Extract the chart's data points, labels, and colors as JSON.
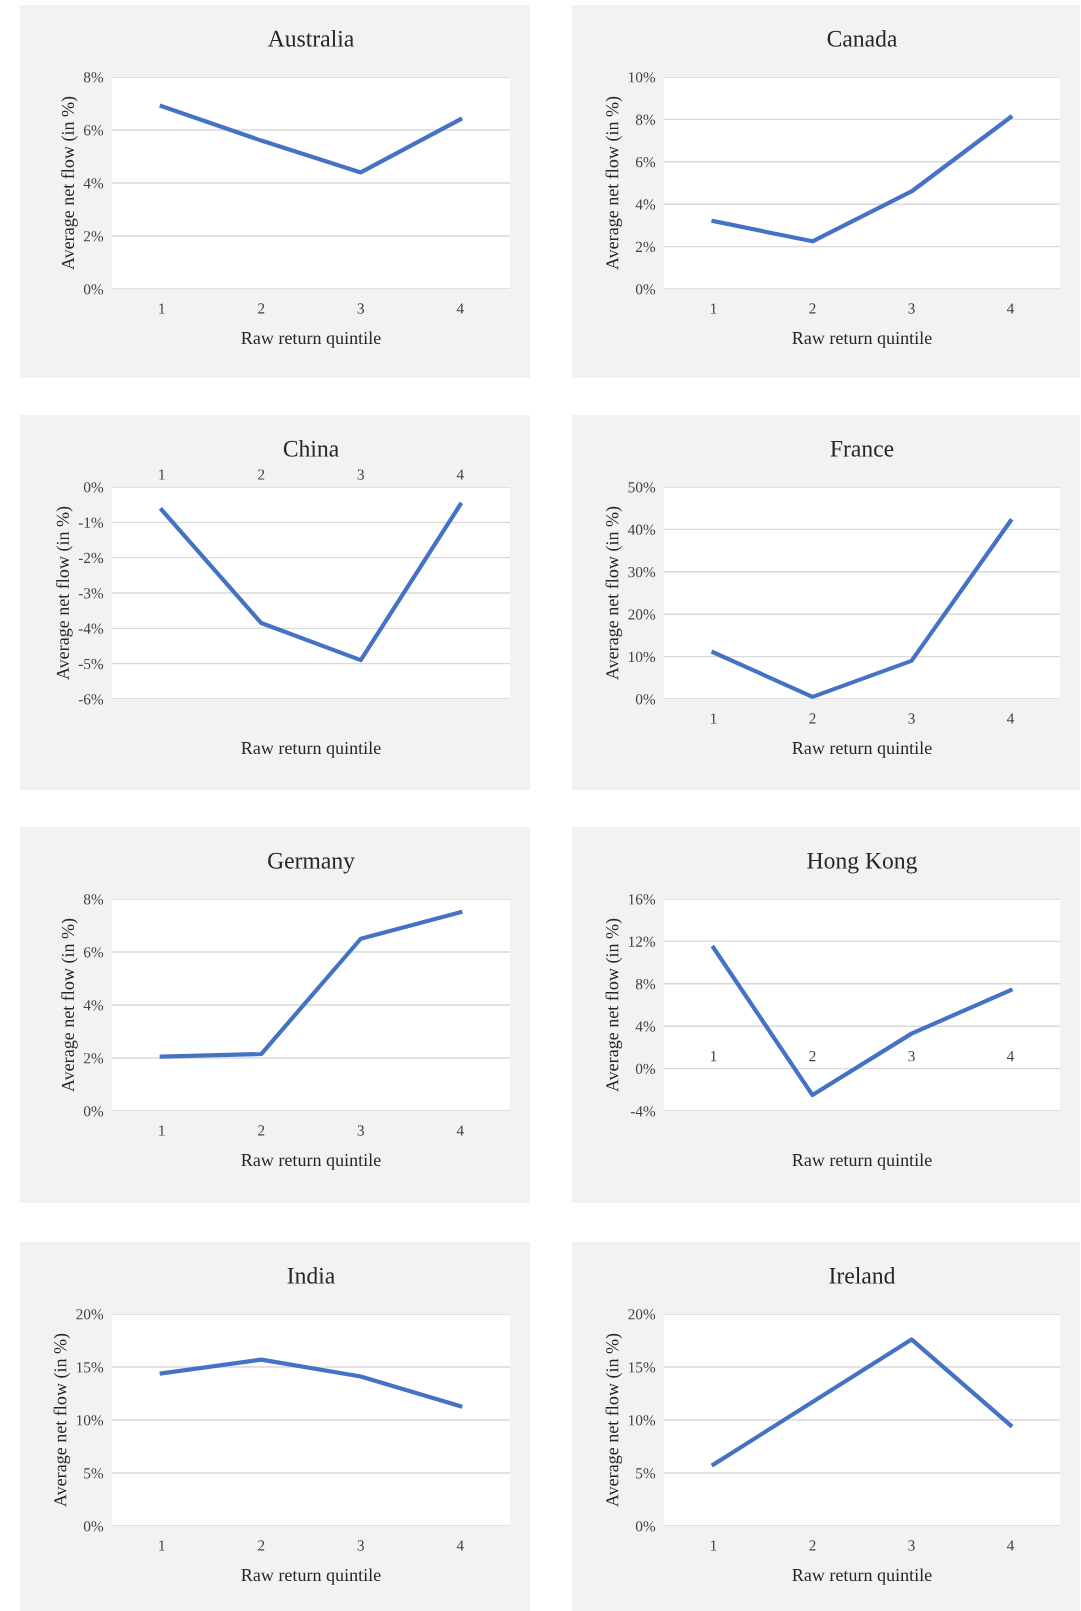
{
  "chart_data": [
    {
      "type": "line",
      "title": "Australia",
      "xlabel": "Raw return quintile",
      "ylabel": "Average net flow (in %)",
      "categories": [
        "1",
        "2",
        "3",
        "4"
      ],
      "color": "#4472c4",
      "grid": "y",
      "values": [
        6.9,
        5.6,
        4.4,
        6.4
      ],
      "ylim": [
        0,
        8
      ],
      "yticks": [
        {
          "value": 0,
          "label": "0%"
        },
        {
          "value": 2,
          "label": "2%"
        },
        {
          "value": 4,
          "label": "4%"
        },
        {
          "value": 6,
          "label": "6%"
        },
        {
          "value": 8,
          "label": "8%"
        }
      ]
    },
    {
      "type": "line",
      "title": "Canada",
      "xlabel": "Raw return quintile",
      "ylabel": "Average net flow (in %)",
      "categories": [
        "1",
        "2",
        "3",
        "4"
      ],
      "color": "#4472c4",
      "grid": "y",
      "values": [
        3.2,
        2.25,
        4.6,
        8.1
      ],
      "ylim": [
        0,
        10
      ],
      "yticks": [
        {
          "value": 0,
          "label": "0%"
        },
        {
          "value": 2,
          "label": "2%"
        },
        {
          "value": 4,
          "label": "4%"
        },
        {
          "value": 6,
          "label": "6%"
        },
        {
          "value": 8,
          "label": "8%"
        },
        {
          "value": 10,
          "label": "10%"
        }
      ]
    },
    {
      "type": "line",
      "title": "China",
      "xlabel": "Raw return quintile",
      "ylabel": "Average net flow (in %)",
      "categories": [
        "1",
        "2",
        "3",
        "4"
      ],
      "color": "#4472c4",
      "grid": "y",
      "values": [
        -0.65,
        -3.85,
        -4.9,
        -0.5
      ],
      "ylim": [
        -6,
        0
      ],
      "yticks": [
        {
          "value": -6,
          "label": "-6%"
        },
        {
          "value": -5,
          "label": "-5%"
        },
        {
          "value": -4,
          "label": "-4%"
        },
        {
          "value": -3,
          "label": "-3%"
        },
        {
          "value": -2,
          "label": "-2%"
        },
        {
          "value": -1,
          "label": "-1%"
        },
        {
          "value": 0,
          "label": "0%"
        }
      ]
    },
    {
      "type": "line",
      "title": "France",
      "xlabel": "Raw return quintile",
      "ylabel": "Average net flow (in %)",
      "categories": [
        "1",
        "2",
        "3",
        "4"
      ],
      "color": "#4472c4",
      "grid": "y",
      "values": [
        11,
        0.5,
        9,
        42
      ],
      "ylim": [
        0,
        50
      ],
      "yticks": [
        {
          "value": 0,
          "label": "0%"
        },
        {
          "value": 10,
          "label": "10%"
        },
        {
          "value": 20,
          "label": "20%"
        },
        {
          "value": 30,
          "label": "30%"
        },
        {
          "value": 40,
          "label": "40%"
        },
        {
          "value": 50,
          "label": "50%"
        }
      ]
    },
    {
      "type": "line",
      "title": "Germany",
      "xlabel": "Raw return quintile",
      "ylabel": "Average net flow (in %)",
      "categories": [
        "1",
        "2",
        "3",
        "4"
      ],
      "color": "#4472c4",
      "grid": "y",
      "values": [
        2.05,
        2.15,
        6.5,
        7.5
      ],
      "ylim": [
        0,
        8
      ],
      "yticks": [
        {
          "value": 0,
          "label": "0%"
        },
        {
          "value": 2,
          "label": "2%"
        },
        {
          "value": 4,
          "label": "4%"
        },
        {
          "value": 6,
          "label": "6%"
        },
        {
          "value": 8,
          "label": "8%"
        }
      ]
    },
    {
      "type": "line",
      "title": "Hong Kong",
      "xlabel": "Raw return quintile",
      "ylabel": "Average net flow (in %)",
      "categories": [
        "1",
        "2",
        "3",
        "4"
      ],
      "color": "#4472c4",
      "grid": "y",
      "values": [
        11.4,
        -2.5,
        3.3,
        7.4
      ],
      "ylim": [
        -4,
        16
      ],
      "yticks": [
        {
          "value": -4,
          "label": "-4%"
        },
        {
          "value": 0,
          "label": "0%"
        },
        {
          "value": 4,
          "label": "4%"
        },
        {
          "value": 8,
          "label": "8%"
        },
        {
          "value": 12,
          "label": "12%"
        },
        {
          "value": 16,
          "label": "16%"
        }
      ]
    },
    {
      "type": "line",
      "title": "India",
      "xlabel": "Raw return quintile",
      "ylabel": "Average net flow (in %)",
      "categories": [
        "1",
        "2",
        "3",
        "4"
      ],
      "color": "#4472c4",
      "grid": "y",
      "values": [
        14.4,
        15.7,
        14.1,
        11.3
      ],
      "ylim": [
        0,
        20
      ],
      "yticks": [
        {
          "value": 0,
          "label": "0%"
        },
        {
          "value": 5,
          "label": "5%"
        },
        {
          "value": 10,
          "label": "10%"
        },
        {
          "value": 15,
          "label": "15%"
        },
        {
          "value": 20,
          "label": "20%"
        }
      ]
    },
    {
      "type": "line",
      "title": "Ireland",
      "xlabel": "Raw return quintile",
      "ylabel": "Average net flow (in %)",
      "categories": [
        "1",
        "2",
        "3",
        "4"
      ],
      "color": "#4472c4",
      "grid": "y",
      "values": [
        5.8,
        11.7,
        17.6,
        9.5
      ],
      "ylim": [
        0,
        20
      ],
      "yticks": [
        {
          "value": 0,
          "label": "0%"
        },
        {
          "value": 5,
          "label": "5%"
        },
        {
          "value": 10,
          "label": "10%"
        },
        {
          "value": 15,
          "label": "15%"
        },
        {
          "value": 20,
          "label": "20%"
        }
      ]
    }
  ]
}
